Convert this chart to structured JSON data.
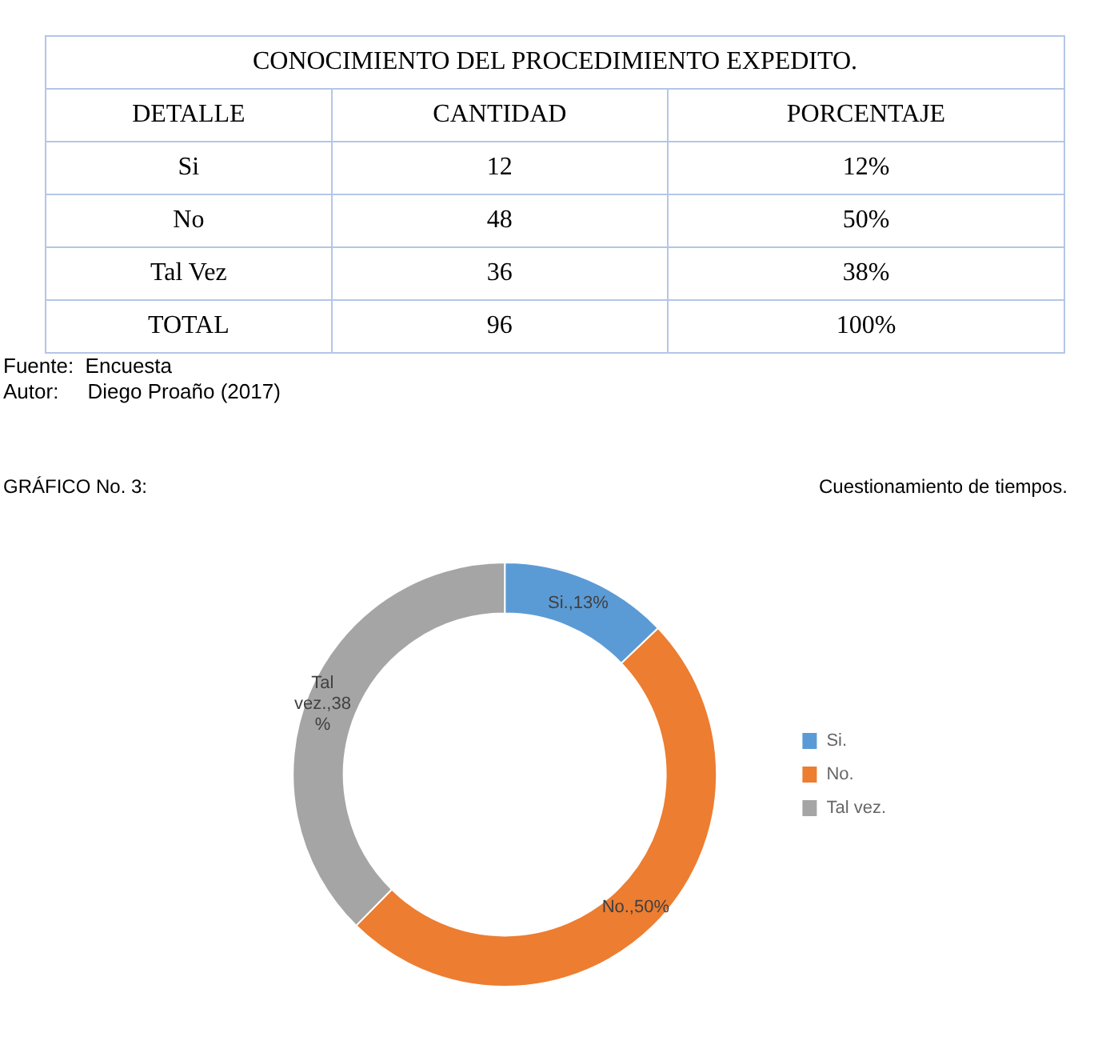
{
  "chart_data": [
    {
      "type": "other",
      "title": "CONOCIMIENTO DEL PROCEDIMIENTO EXPEDITO.",
      "xlabel": "DETALLE",
      "categories": [
        "Si",
        "No",
        "Tal Vez",
        "TOTAL"
      ],
      "data_labels": true,
      "series": [
        {
          "name": "CANTIDAD",
          "values": [
            12,
            48,
            36,
            96
          ]
        },
        {
          "name": "PORCENTAJE",
          "values": [
            12,
            50,
            38,
            100
          ],
          "value_labels": [
            "12%",
            "50%",
            "38%",
            "100%"
          ]
        }
      ],
      "annotations": [
        "Fuente:  Encuesta",
        "Autor:     Diego Proaño (2017)"
      ]
    },
    {
      "type": "donut",
      "title": "GRÁFICO No. 3:",
      "subtitle": "Cuestionamiento de tiempos.",
      "categories": [
        "Si.",
        "No.",
        "Tal vez."
      ],
      "values": [
        13,
        50,
        38
      ],
      "colors": [
        "#5b9bd5",
        "#ed7d31",
        "#a5a5a5"
      ],
      "value_labels": [
        "Si.,13%",
        "No.,50%",
        "Tal vez.,38 %"
      ],
      "legend": "right"
    }
  ]
}
